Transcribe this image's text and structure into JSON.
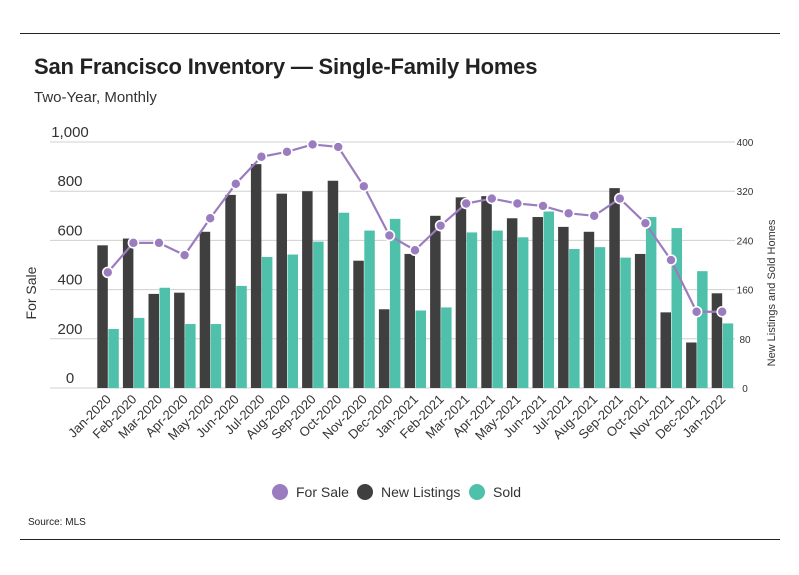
{
  "header": {
    "title": "San Francisco Inventory — Single-Family Homes",
    "subtitle": "Two-Year, Monthly"
  },
  "source": "Source:  MLS",
  "colors": {
    "for_sale": "#9b7cbf",
    "new_listings": "#3f3f3f",
    "sold": "#4fc1aa",
    "grid": "#d0d0d0",
    "rule": "#222222"
  },
  "chart_data": {
    "type": "bar",
    "title": "San Francisco Inventory — Single-Family Homes",
    "subtitle": "Two-Year, Monthly",
    "categories": [
      "Jan-2020",
      "Feb-2020",
      "Mar-2020",
      "Apr-2020",
      "May-2020",
      "Jun-2020",
      "Jul-2020",
      "Aug-2020",
      "Sep-2020",
      "Oct-2020",
      "Nov-2020",
      "Dec-2020",
      "Jan-2021",
      "Feb-2021",
      "Mar-2021",
      "Apr-2021",
      "May-2021",
      "Jun-2021",
      "Jul-2021",
      "Aug-2021",
      "Sep-2021",
      "Oct-2021",
      "Nov-2021",
      "Dec-2021",
      "Jan-2022"
    ],
    "ylabel_left": "For Sale",
    "ylabel_right": "New Listings and Sold Homes",
    "ylim_left": [
      0,
      1000
    ],
    "ylim_right": [
      0,
      400
    ],
    "yticks_left": [
      "0",
      "200",
      "400",
      "600",
      "800",
      "1,000"
    ],
    "yticks_right": [
      "0",
      "80",
      "160",
      "240",
      "320",
      "400"
    ],
    "grid": true,
    "legend_position": "bottom",
    "series": [
      {
        "name": "For Sale",
        "kind": "line",
        "axis": "left",
        "values": [
          470,
          590,
          590,
          540,
          690,
          830,
          940,
          960,
          990,
          980,
          820,
          620,
          560,
          660,
          750,
          770,
          750,
          740,
          710,
          700,
          770,
          670,
          520,
          310,
          310
        ]
      },
      {
        "name": "New Listings",
        "kind": "bar",
        "axis": "right",
        "values": [
          232,
          243,
          153,
          155,
          254,
          314,
          364,
          316,
          320,
          337,
          207,
          128,
          218,
          280,
          310,
          312,
          276,
          278,
          262,
          254,
          325,
          218,
          123,
          74,
          154
        ]
      },
      {
        "name": "Sold",
        "kind": "bar",
        "axis": "right",
        "values": [
          96,
          114,
          163,
          104,
          104,
          166,
          213,
          217,
          238,
          285,
          256,
          275,
          126,
          131,
          253,
          256,
          245,
          287,
          226,
          229,
          212,
          278,
          260,
          190,
          105
        ]
      }
    ]
  }
}
